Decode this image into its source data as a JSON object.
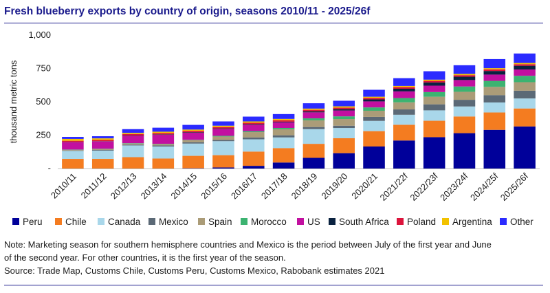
{
  "title": "Fresh blueberry exports by country of origin, seasons 2010/11 - 2025/26f",
  "notes": {
    "note1": "Note: Marketing season for southern hemisphere countries and Mexico is the period between July of the first year and June",
    "note2": "of the second year. For other countries, it is the first year of the season.",
    "source": "Source: Trade Map, Customs Chile, Customs Peru, Customs Mexico, Rabobank estimates 2021"
  },
  "chart_data": {
    "type": "bar",
    "stacked": true,
    "title": "Fresh blueberry exports by country of origin, seasons 2010/11 - 2025/26f",
    "xlabel": "",
    "ylabel": "thousand metric tons",
    "ylim": [
      0,
      1000
    ],
    "yticks": [
      0,
      250,
      500,
      750,
      1000
    ],
    "ytick_labels": [
      "-",
      "250",
      "500",
      "750",
      "1,000"
    ],
    "grid": false,
    "legend_position": "bottom",
    "categories": [
      "2010/11",
      "2011/12",
      "2012/13",
      "2013/14",
      "2014/15",
      "2015/16",
      "2016/17",
      "2017/18",
      "2018/19",
      "2019/20",
      "2020/21",
      "2021/22f",
      "2022/23f",
      "2023/24f",
      "2024/25f",
      "2025/26f"
    ],
    "series": [
      {
        "name": "Peru",
        "color": "#00009a",
        "values": [
          0,
          0,
          0,
          0,
          2,
          8,
          20,
          45,
          80,
          115,
          165,
          210,
          235,
          265,
          290,
          315
        ]
      },
      {
        "name": "Chile",
        "color": "#f47c20",
        "values": [
          72,
          72,
          85,
          75,
          93,
          92,
          107,
          108,
          105,
          112,
          115,
          118,
          123,
          125,
          130,
          135
        ]
      },
      {
        "name": "Canada",
        "color": "#a9d7ea",
        "values": [
          60,
          62,
          88,
          90,
          92,
          105,
          92,
          80,
          110,
          77,
          77,
          75,
          78,
          75,
          75,
          75
        ]
      },
      {
        "name": "Mexico",
        "color": "#5b6976",
        "values": [
          3,
          5,
          6,
          8,
          10,
          10,
          14,
          16,
          16,
          17,
          30,
          40,
          45,
          50,
          55,
          58
        ]
      },
      {
        "name": "Spain",
        "color": "#ab9c78",
        "values": [
          5,
          6,
          8,
          9,
          15,
          25,
          40,
          45,
          50,
          50,
          46,
          53,
          57,
          60,
          62,
          64
        ]
      },
      {
        "name": "Morocco",
        "color": "#3cb371",
        "values": [
          2,
          3,
          3,
          3,
          3,
          5,
          7,
          10,
          15,
          20,
          25,
          32,
          35,
          40,
          45,
          48
        ]
      },
      {
        "name": "US",
        "color": "#c210a0",
        "values": [
          55,
          55,
          55,
          68,
          53,
          52,
          48,
          42,
          45,
          44,
          45,
          50,
          48,
          48,
          47,
          47
        ]
      },
      {
        "name": "South Africa",
        "color": "#0a2240",
        "values": [
          2,
          2,
          3,
          3,
          4,
          4,
          5,
          5,
          8,
          10,
          15,
          20,
          24,
          25,
          27,
          28
        ]
      },
      {
        "name": "Poland",
        "color": "#dc143c",
        "values": [
          9,
          9,
          10,
          10,
          10,
          10,
          10,
          11,
          11,
          11,
          11,
          12,
          12,
          12,
          12,
          12
        ]
      },
      {
        "name": "Argentina",
        "color": "#f2c200",
        "values": [
          14,
          12,
          9,
          10,
          10,
          10,
          10,
          10,
          9,
          10,
          9,
          9,
          9,
          9,
          9,
          9
        ]
      },
      {
        "name": "Other",
        "color": "#2b2bff",
        "values": [
          15,
          16,
          28,
          30,
          35,
          32,
          36,
          36,
          40,
          42,
          52,
          58,
          63,
          65,
          68,
          71
        ]
      }
    ]
  }
}
